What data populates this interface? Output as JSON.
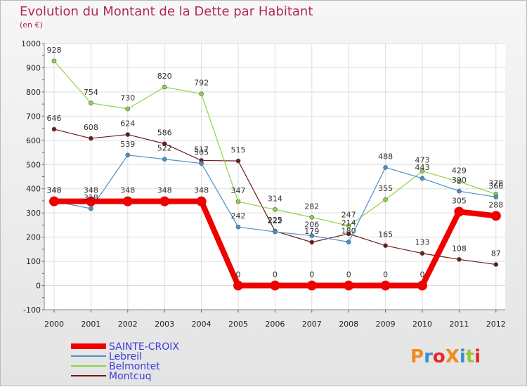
{
  "page": {
    "title": "Evolution du Montant de la Dette par Habitant",
    "subtitle": "(en €)"
  },
  "logo": {
    "text": "ProXiti",
    "colors": [
      "#f08c1c",
      "#3a8fd0",
      "#e8262a",
      "#f08c1c",
      "#3a8fd0",
      "#9bc53d",
      "#e8262a"
    ]
  },
  "chart_data": {
    "type": "line",
    "categories": [
      "2000",
      "2001",
      "2002",
      "2003",
      "2004",
      "2005",
      "2006",
      "2007",
      "2008",
      "2009",
      "2010",
      "2011",
      "2012"
    ],
    "ylim": [
      -100,
      1000
    ],
    "yticks": [
      -100,
      0,
      100,
      200,
      300,
      400,
      500,
      600,
      700,
      800,
      900,
      1000
    ],
    "grid": true,
    "legend_position": "bottom-left",
    "series": [
      {
        "name": "SAINTE-CROIX",
        "color": "#ee0000",
        "emphasis": true,
        "values": [
          348,
          348,
          348,
          348,
          348,
          0,
          0,
          0,
          0,
          0,
          0,
          305,
          288
        ]
      },
      {
        "name": "Lebreil",
        "color": "#4a90c8",
        "values": [
          348,
          318,
          539,
          522,
          505,
          242,
          222,
          206,
          180,
          488,
          443,
          390,
          366
        ]
      },
      {
        "name": "Belmontet",
        "color": "#8cd448",
        "values": [
          928,
          754,
          730,
          820,
          792,
          347,
          314,
          282,
          247,
          355,
          473,
          429,
          378
        ]
      },
      {
        "name": "Montcuq",
        "color": "#6e1a1a",
        "values": [
          646,
          608,
          624,
          586,
          517,
          515,
          225,
          179,
          214,
          165,
          133,
          108,
          87
        ]
      }
    ],
    "value_labels": {
      "SAINTE-CROIX": [
        "348",
        "348",
        "348",
        "348",
        "348",
        "0",
        "0",
        "0",
        "0",
        "0",
        "0",
        "305",
        "288"
      ],
      "Lebreil": [
        "348",
        "318",
        "539",
        "522",
        "505",
        "242",
        "222",
        "206",
        "180",
        "488",
        "443",
        "390",
        "366"
      ],
      "Belmontet": [
        "928",
        "754",
        "730",
        "820",
        "792",
        "347",
        "314",
        "282",
        "247",
        "355",
        "473",
        "429",
        "378"
      ],
      "Montcuq": [
        "646",
        "608",
        "624",
        "586",
        "517",
        "515",
        "225",
        "179",
        "214",
        "165",
        "133",
        "108",
        "87"
      ]
    }
  }
}
